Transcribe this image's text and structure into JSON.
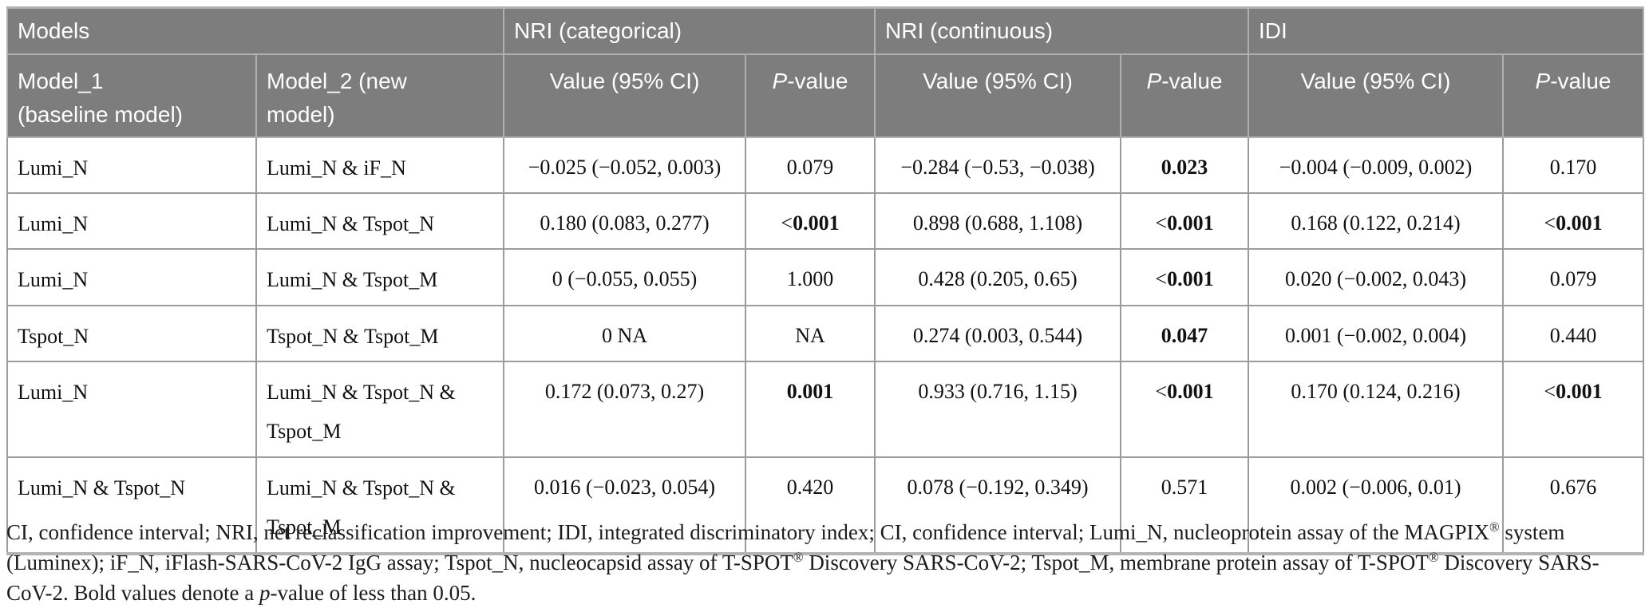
{
  "colors": {
    "header_bg": "#7d7d7d",
    "header_text": "#ffffff",
    "header_grid_line": "#b0b0b0",
    "body_grid_line": "#9c9c9c",
    "outer_border": "#b3b3b3",
    "body_bg": "#ffffff"
  },
  "table": {
    "group_headers": [
      {
        "label": "Models",
        "colspan": 2
      },
      {
        "label": "NRI (categorical)",
        "colspan": 2
      },
      {
        "label": "NRI (continuous)",
        "colspan": 2
      },
      {
        "label": "IDI",
        "colspan": 2
      }
    ],
    "sub_headers": [
      "Model_1\n(baseline model)",
      "Model_2 (new\nmodel)",
      "Value (95% CI)",
      "P-value",
      "Value (95% CI)",
      "P-value",
      "Value (95% CI)",
      "P-value"
    ],
    "rows": [
      {
        "model1": "Lumi_N",
        "model2": "Lumi_N & iF_N",
        "nri_cat": {
          "value": "−0.025 (−0.052, 0.003)",
          "p": "0.079",
          "p_bold": false
        },
        "nri_cont": {
          "value": "−0.284 (−0.53, −0.038)",
          "p": "0.023",
          "p_bold": true
        },
        "idi": {
          "value": "−0.004 (−0.009, 0.002)",
          "p": "0.170",
          "p_bold": false
        }
      },
      {
        "model1": "Lumi_N",
        "model2": "Lumi_N & Tspot_N",
        "nri_cat": {
          "value": "0.180 (0.083, 0.277)",
          "p": "<0.001",
          "p_bold": true
        },
        "nri_cont": {
          "value": "0.898 (0.688, 1.108)",
          "p": "<0.001",
          "p_bold": true
        },
        "idi": {
          "value": "0.168 (0.122, 0.214)",
          "p": "<0.001",
          "p_bold": true
        }
      },
      {
        "model1": "Lumi_N",
        "model2": "Lumi_N & Tspot_M",
        "nri_cat": {
          "value": "0 (−0.055, 0.055)",
          "p": "1.000",
          "p_bold": false
        },
        "nri_cont": {
          "value": "0.428 (0.205, 0.65)",
          "p": "<0.001",
          "p_bold": true
        },
        "idi": {
          "value": "0.020 (−0.002, 0.043)",
          "p": "0.079",
          "p_bold": false
        }
      },
      {
        "model1": "Tspot_N",
        "model2": "Tspot_N & Tspot_M",
        "nri_cat": {
          "value": "0 NA",
          "p": "NA",
          "p_bold": false
        },
        "nri_cont": {
          "value": "0.274 (0.003, 0.544)",
          "p": "0.047",
          "p_bold": true
        },
        "idi": {
          "value": "0.001 (−0.002, 0.004)",
          "p": "0.440",
          "p_bold": false
        }
      },
      {
        "model1": "Lumi_N",
        "model2": "Lumi_N & Tspot_N & Tspot_M",
        "nri_cat": {
          "value": "0.172 (0.073, 0.27)",
          "p": "0.001",
          "p_bold": true
        },
        "nri_cont": {
          "value": "0.933 (0.716, 1.15)",
          "p": "<0.001",
          "p_bold": true
        },
        "idi": {
          "value": "0.170 (0.124, 0.216)",
          "p": "<0.001",
          "p_bold": true
        }
      },
      {
        "model1": "Lumi_N & Tspot_N",
        "model2": "Lumi_N & Tspot_N & Tspot_M",
        "nri_cat": {
          "value": "0.016 (−0.023, 0.054)",
          "p": "0.420",
          "p_bold": false
        },
        "nri_cont": {
          "value": "0.078 (−0.192, 0.349)",
          "p": "0.571",
          "p_bold": false
        },
        "idi": {
          "value": "0.002 (−0.006, 0.01)",
          "p": "0.676",
          "p_bold": false
        }
      }
    ]
  },
  "footnote": {
    "segments": [
      {
        "text": "CI, confidence interval; NRI, net reclassification improvement; IDI, integrated discriminatory index; CI, confidence interval; Lumi_N, nucleoprotein assay of the MAGPIX"
      },
      {
        "text": "®",
        "sup": true
      },
      {
        "text": " system (Luminex); iF_N, iFlash-SARS-CoV-2 IgG assay; Tspot_N, nucleocapsid assay of T-SPOT"
      },
      {
        "text": "®",
        "sup": true
      },
      {
        "text": " Discovery SARS-CoV-2; Tspot_M, membrane protein assay of T-SPOT"
      },
      {
        "text": "®",
        "sup": true
      },
      {
        "text": " Discovery SARS-CoV-2. Bold values denote a "
      },
      {
        "text": "p",
        "italic": true
      },
      {
        "text": "-value of less than 0.05."
      }
    ]
  }
}
